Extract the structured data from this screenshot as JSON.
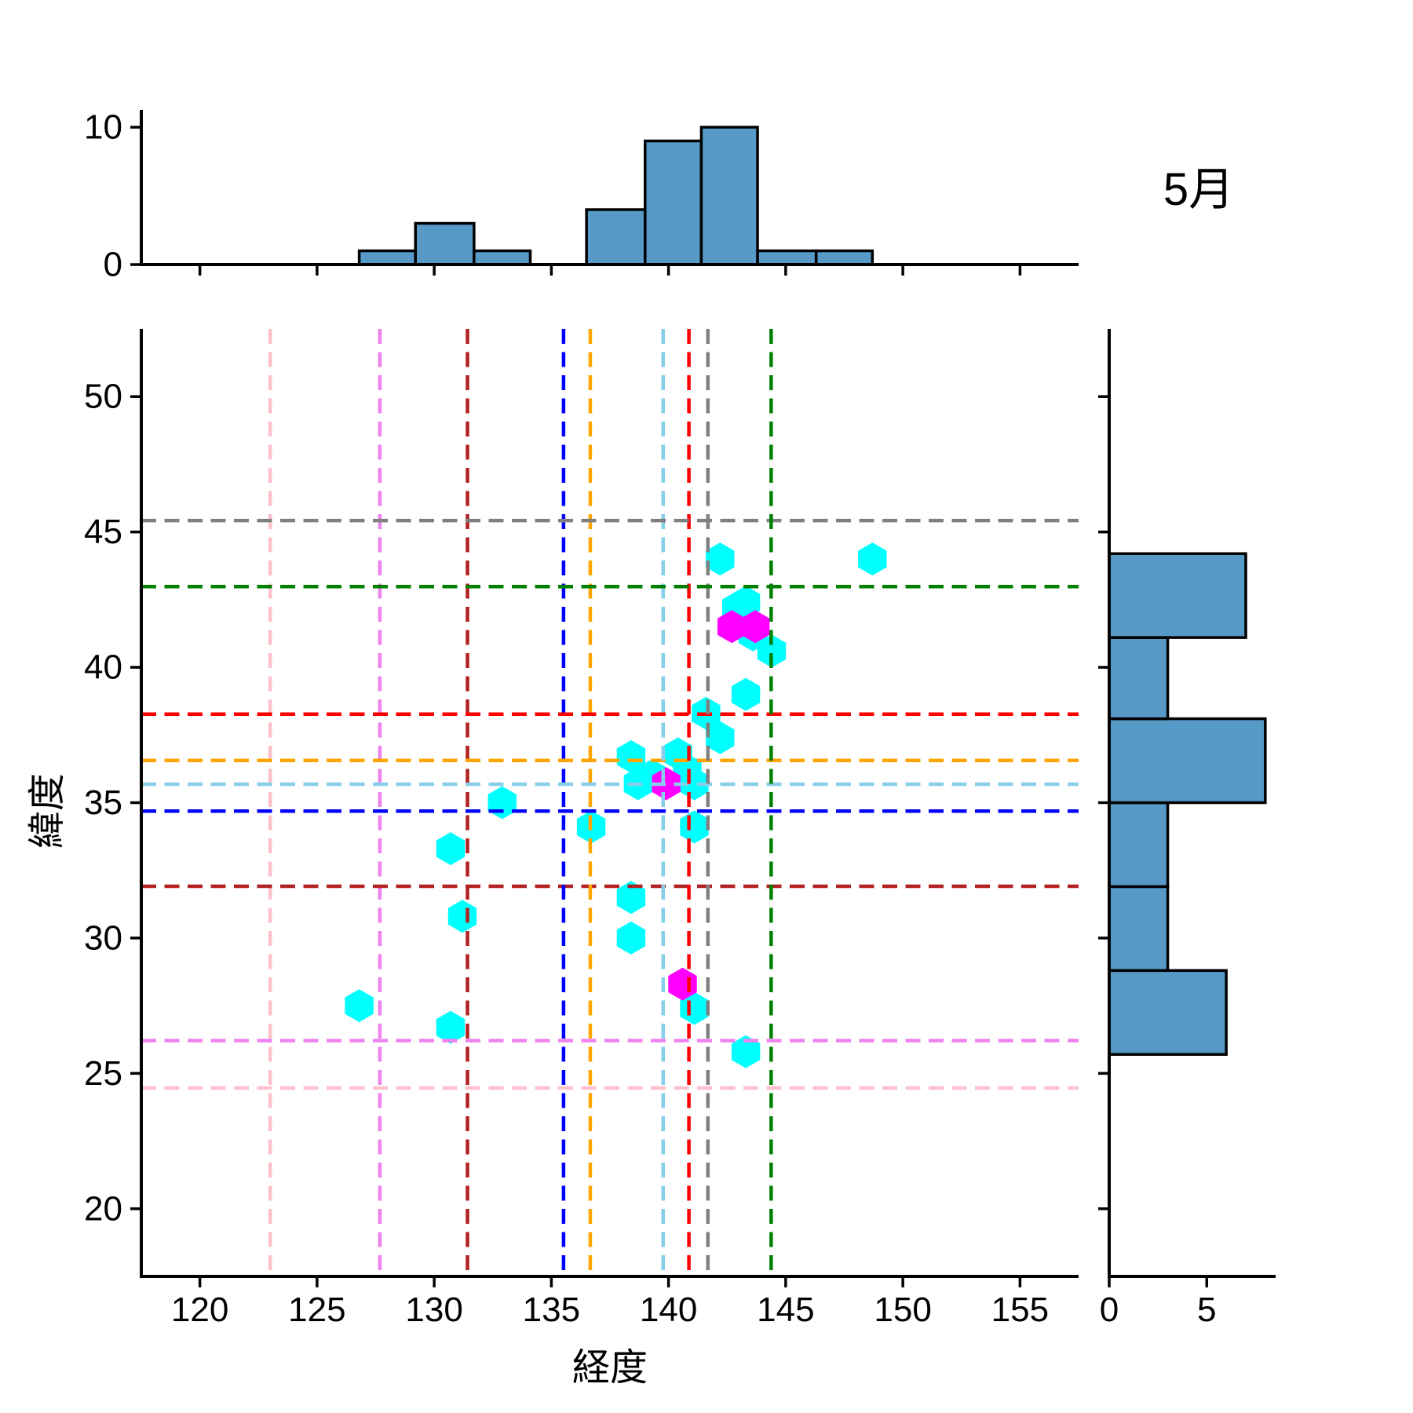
{
  "title": "5月",
  "main_plot": {
    "xlabel": "経度",
    "ylabel": "緯度",
    "x_tick_labels": [
      "120",
      "125",
      "130",
      "135",
      "140",
      "145",
      "150",
      "155"
    ],
    "y_tick_labels": [
      "20",
      "25",
      "30",
      "35",
      "40",
      "45",
      "50"
    ]
  },
  "top_histogram_panel": {
    "y_tick_labels": [
      "0",
      "10"
    ]
  },
  "right_histogram_panel": {
    "x_tick_labels": [
      "0",
      "5"
    ]
  },
  "colors": {
    "scatter_primary": "#00FFFF",
    "scatter_highlight": "#FF00FF",
    "histogram_bar": "#5799C7",
    "histogram_edge": "#000000",
    "axis": "#000000"
  },
  "chart_data": {
    "type": "scatter",
    "title": "5月",
    "xlabel": "経度",
    "ylabel": "緯度",
    "xlim": [
      117.5,
      157.5
    ],
    "ylim": [
      17.5,
      52.5
    ],
    "x_ticks": [
      120,
      125,
      130,
      135,
      140,
      145,
      150,
      155
    ],
    "y_ticks": [
      20,
      25,
      30,
      35,
      40,
      45,
      50
    ],
    "grid": false,
    "series": [
      {
        "name": "points-cyan",
        "marker": "hexagon",
        "color": "#00FFFF",
        "points": [
          [
            126.8,
            27.5
          ],
          [
            130.7,
            26.7
          ],
          [
            130.7,
            33.3
          ],
          [
            131.2,
            30.8
          ],
          [
            132.9,
            35.0
          ],
          [
            136.7,
            34.1
          ],
          [
            138.4,
            30.0
          ],
          [
            138.4,
            31.5
          ],
          [
            138.4,
            36.7
          ],
          [
            138.7,
            35.7
          ],
          [
            139.3,
            36.0
          ],
          [
            140.4,
            36.8
          ],
          [
            140.8,
            36.2
          ],
          [
            141.1,
            34.1
          ],
          [
            141.1,
            35.7
          ],
          [
            141.1,
            27.4
          ],
          [
            141.6,
            38.3
          ],
          [
            142.2,
            37.4
          ],
          [
            142.2,
            44.0
          ],
          [
            142.9,
            42.2
          ],
          [
            143.3,
            42.4
          ],
          [
            143.3,
            39.0
          ],
          [
            143.3,
            25.8
          ],
          [
            143.6,
            41.2
          ],
          [
            144.4,
            40.6
          ],
          [
            148.7,
            44.0
          ]
        ]
      },
      {
        "name": "points-magenta",
        "marker": "hexagon",
        "color": "#FF00FF",
        "points": [
          [
            139.9,
            35.7
          ],
          [
            140.6,
            28.3
          ],
          [
            142.7,
            41.5
          ],
          [
            143.7,
            41.5
          ]
        ]
      }
    ],
    "reference_crosses": [
      {
        "color": "#FFC0CB",
        "x": 123.0,
        "y": 24.46
      },
      {
        "color": "#EE82EE",
        "x": 127.68,
        "y": 26.21
      },
      {
        "color": "#B22222",
        "x": 131.42,
        "y": 31.91
      },
      {
        "color": "#0000FF",
        "x": 135.52,
        "y": 34.69
      },
      {
        "color": "#FFA500",
        "x": 136.66,
        "y": 36.56
      },
      {
        "color": "#87CEEB",
        "x": 139.77,
        "y": 35.68
      },
      {
        "color": "#FF0000",
        "x": 140.87,
        "y": 38.27
      },
      {
        "color": "#808080",
        "x": 141.68,
        "y": 45.42
      },
      {
        "color": "#008000",
        "x": 144.38,
        "y": 42.98
      }
    ],
    "marginal_top_histogram": {
      "bin_edges": [
        126.8,
        129.2,
        131.7,
        134.1,
        136.5,
        139.0,
        141.4,
        143.8,
        146.3,
        148.7
      ],
      "counts": [
        1,
        3,
        1,
        0,
        4,
        9,
        10,
        1,
        1
      ],
      "ylim": [
        0,
        11.26
      ],
      "y_ticks": [
        0,
        10
      ],
      "bar_color": "#5799C7"
    },
    "marginal_right_histogram": {
      "bin_edges": [
        25.7,
        28.8,
        31.9,
        35.0,
        38.1,
        41.1,
        44.2
      ],
      "counts": [
        6,
        3,
        3,
        8,
        3,
        7
      ],
      "xlim": [
        0,
        8.53
      ],
      "x_ticks": [
        0,
        5
      ],
      "bar_color": "#5799C7"
    }
  }
}
